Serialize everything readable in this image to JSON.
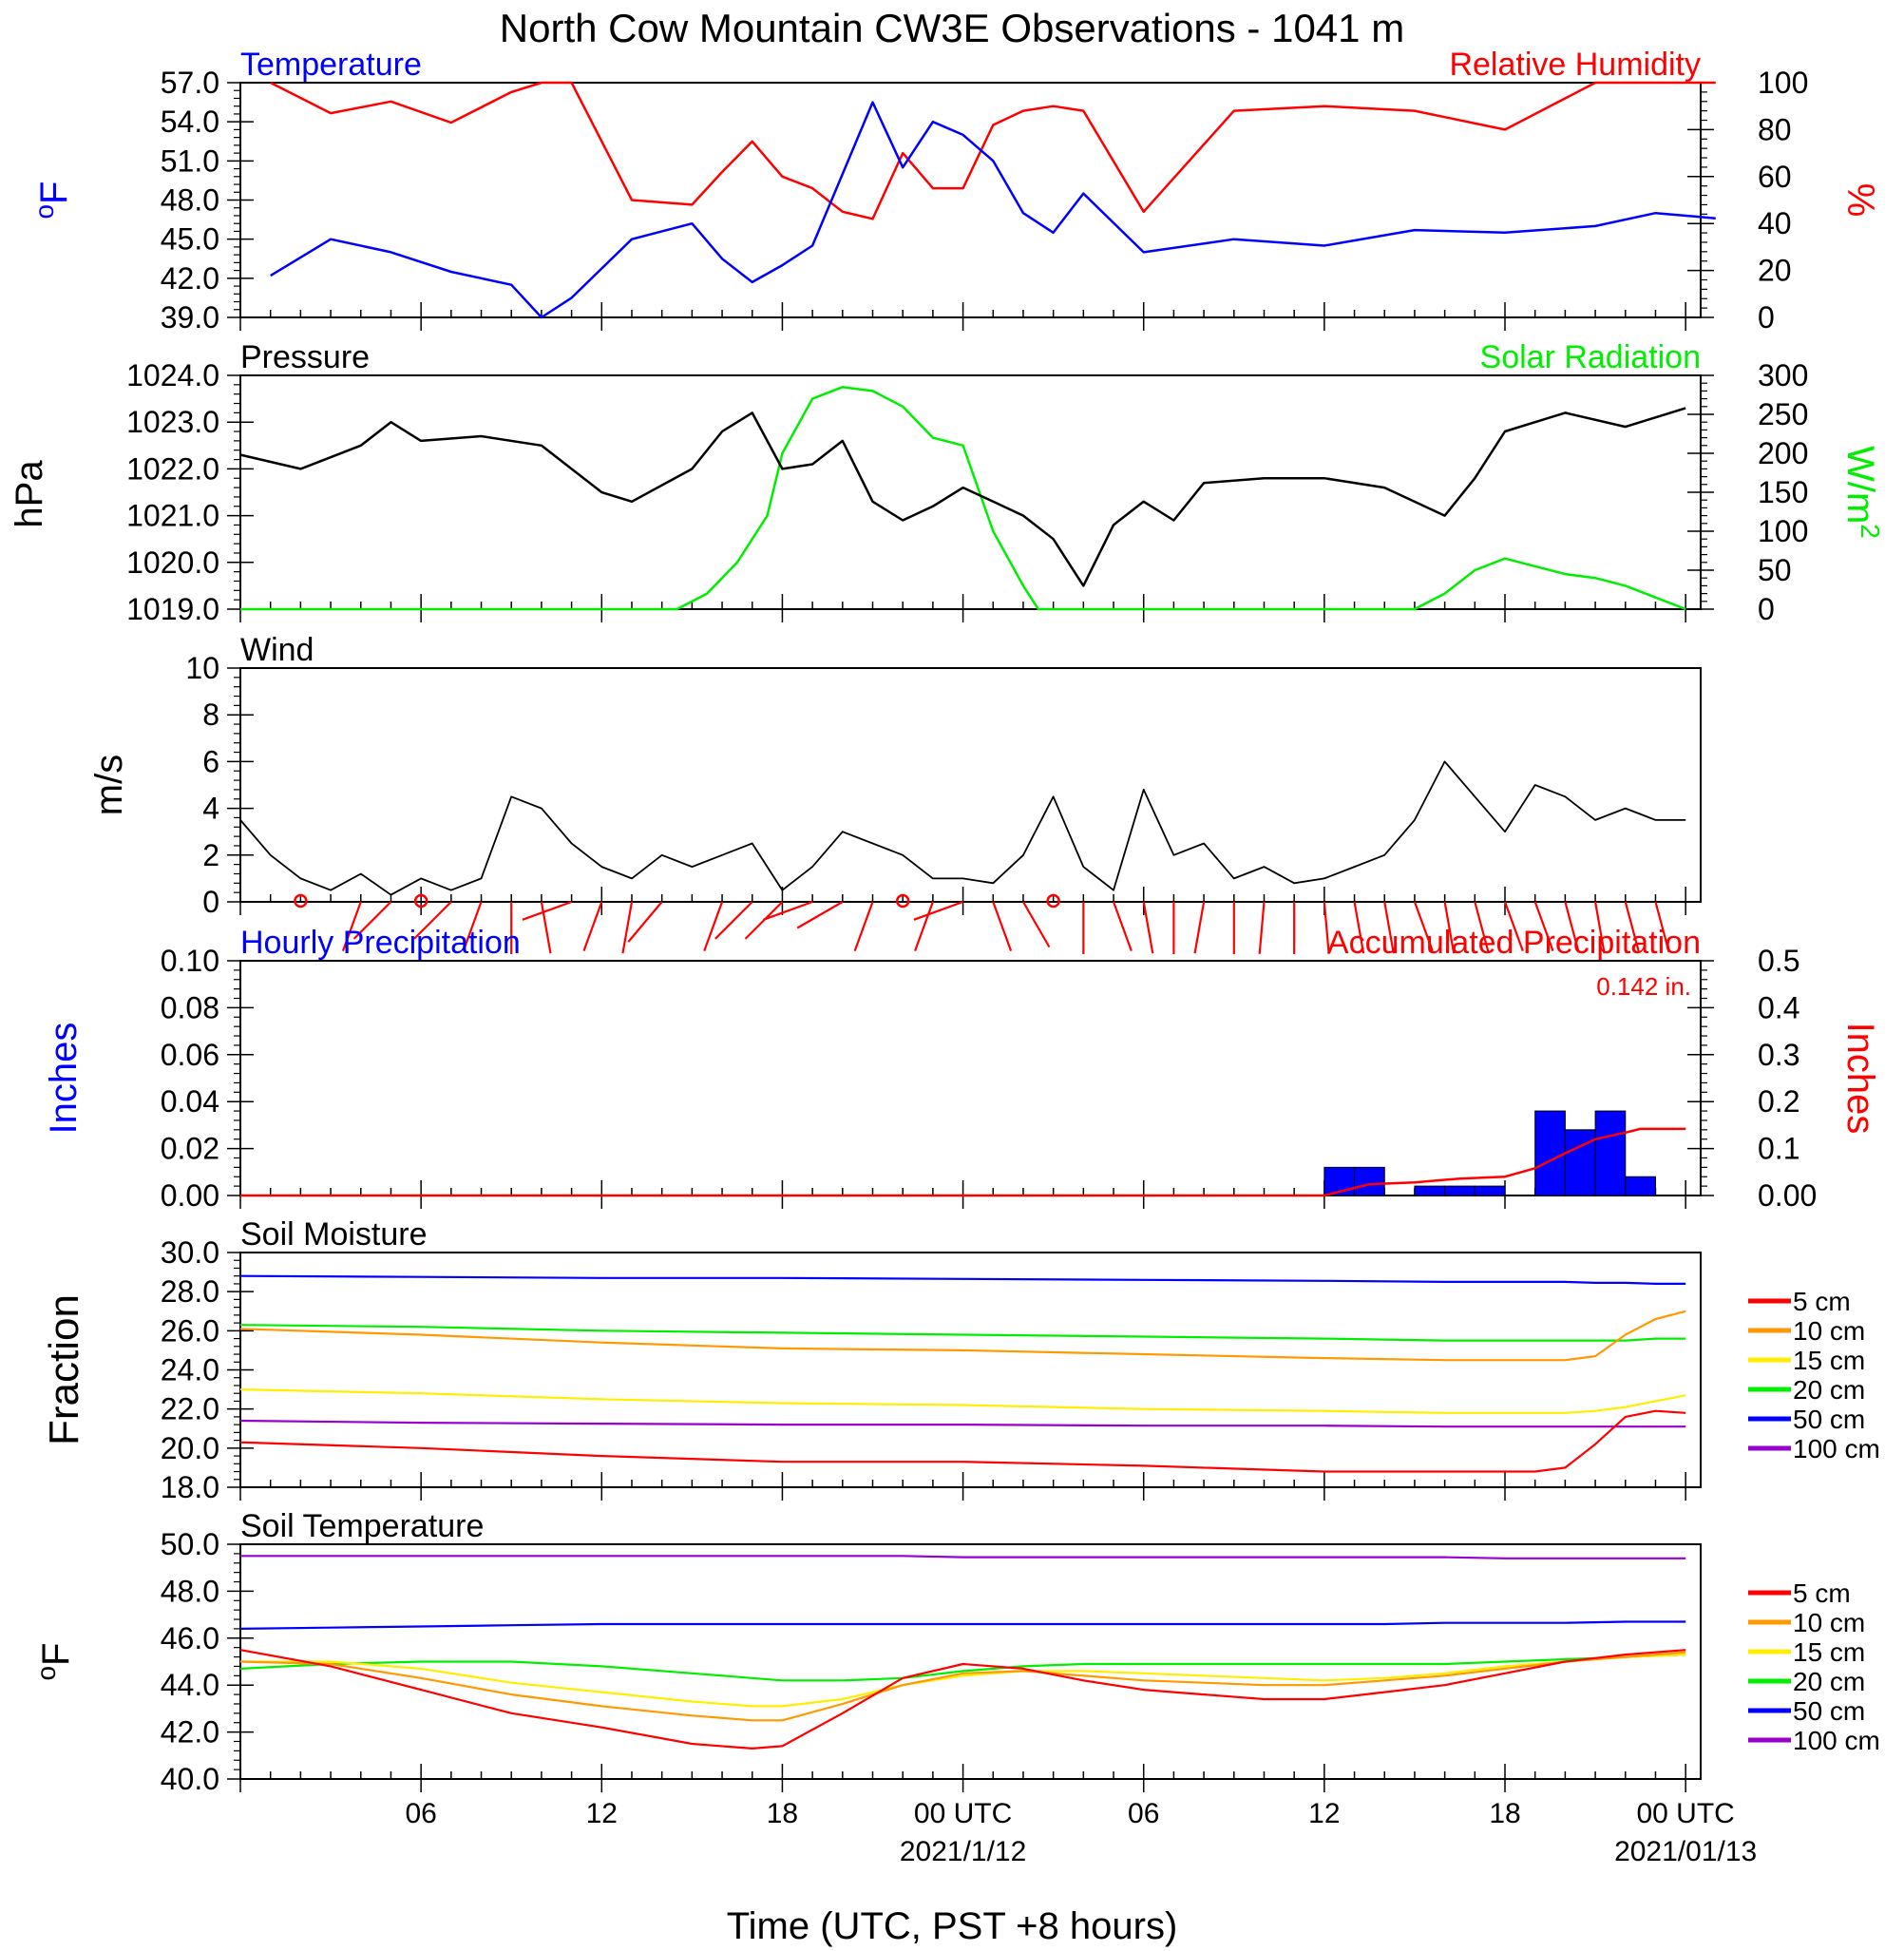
{
  "title": "North Cow Mountain CW3E Observations - 1041 m",
  "xlabel": "Time (UTC, PST +8 hours)",
  "xticks": [
    "06",
    "12",
    "18",
    "00 UTC",
    "06",
    "12",
    "18",
    "00 UTC"
  ],
  "date_labels": [
    "2021/1/12",
    "2021/01/13"
  ],
  "colors": {
    "temperature": "#0000ff",
    "humidity": "#ff0000",
    "pressure": "#000000",
    "solar": "#00ee00",
    "wind": "#000000",
    "barb": "#ff0000",
    "hourly": "#0000ff",
    "accum": "#ff0000",
    "d5": "#ff0000",
    "d10": "#ff9900",
    "d15": "#ffee00",
    "d20": "#00ee00",
    "d50": "#0000ff",
    "d100": "#9900cc"
  },
  "chart_data": [
    {
      "type": "line",
      "title_left": "Temperature",
      "title_right": "Relative Humidity",
      "ylabel_left": "oF",
      "ylabel_right": "%",
      "ylim_left": [
        39,
        57
      ],
      "yticks_left": [
        "57.0",
        "54.0",
        "51.0",
        "48.0",
        "45.0",
        "42.0",
        "39.0"
      ],
      "ylim_right": [
        0,
        100
      ],
      "yticks_right": [
        "100",
        "80",
        "60",
        "40",
        "20",
        "0"
      ],
      "x_hours": [
        1,
        3,
        5,
        7,
        9,
        10,
        11,
        13,
        15,
        16,
        17,
        18,
        19,
        20,
        21,
        22,
        23,
        24,
        25,
        26,
        27,
        28,
        30,
        33,
        36,
        39,
        42,
        45,
        47,
        49
      ],
      "series": [
        {
          "name": "Temperature",
          "axis": "left",
          "values": [
            42.2,
            45.0,
            44.0,
            42.5,
            41.5,
            39.0,
            40.5,
            45.0,
            46.2,
            43.5,
            41.7,
            43.0,
            44.5,
            50.0,
            55.5,
            50.5,
            54.0,
            53.0,
            51.0,
            47.0,
            45.5,
            48.5,
            44.0,
            45.0,
            44.5,
            45.7,
            45.5,
            46.0,
            47.0,
            46.6
          ]
        },
        {
          "name": "Relative Humidity",
          "axis": "right",
          "values": [
            100,
            87,
            92,
            83,
            96,
            100,
            100,
            50,
            48,
            62,
            75,
            60,
            55,
            45,
            42,
            70,
            55,
            55,
            82,
            88,
            90,
            88,
            45,
            88,
            90,
            88,
            80,
            100,
            100,
            100
          ]
        }
      ]
    },
    {
      "type": "line",
      "title_left": "Pressure",
      "title_right": "Solar Radiation",
      "ylabel_left": "hPa",
      "ylabel_right": "W/m2",
      "ylim_left": [
        1019,
        1024
      ],
      "yticks_left": [
        "1024.0",
        "1023.0",
        "1022.0",
        "1021.0",
        "1020.0",
        "1019.0"
      ],
      "ylim_right": [
        0,
        300
      ],
      "yticks_right": [
        "300",
        "250",
        "200",
        "150",
        "100",
        "50",
        "0"
      ],
      "pressure_x": [
        0,
        2,
        4,
        5,
        6,
        8,
        10,
        11,
        12,
        13,
        15,
        16,
        17,
        18,
        19,
        20,
        21,
        22,
        23,
        24,
        25,
        26,
        27,
        28,
        29,
        30,
        31,
        32,
        34,
        36,
        38,
        40,
        41,
        42,
        43,
        44,
        46,
        48
      ],
      "pressure": [
        1022.3,
        1022.0,
        1022.5,
        1023.0,
        1022.6,
        1022.7,
        1022.5,
        1022.0,
        1021.5,
        1021.3,
        1022.0,
        1022.8,
        1023.2,
        1022.0,
        1022.1,
        1022.6,
        1021.3,
        1020.9,
        1021.2,
        1021.6,
        1021.3,
        1021.0,
        1020.5,
        1019.5,
        1020.8,
        1021.3,
        1020.9,
        1021.7,
        1021.8,
        1021.8,
        1021.6,
        1021.0,
        1021.8,
        1022.8,
        1023.0,
        1023.2,
        1022.9,
        1023.3
      ],
      "solar_x": [
        0,
        14.5,
        15.5,
        16.5,
        17.5,
        18,
        19,
        20,
        21,
        22,
        23,
        24,
        25,
        26,
        26.5,
        39,
        40,
        41,
        42,
        43,
        44,
        45,
        46,
        47,
        48
      ],
      "solar": [
        0,
        0,
        20,
        60,
        120,
        200,
        270,
        285,
        280,
        260,
        220,
        210,
        100,
        30,
        0,
        0,
        20,
        50,
        65,
        55,
        45,
        40,
        30,
        15,
        0
      ]
    },
    {
      "type": "line",
      "title_left": "Wind",
      "ylabel_left": "m/s",
      "ylim_left": [
        0,
        10
      ],
      "yticks_left": [
        "10",
        "8",
        "6",
        "4",
        "2",
        "0"
      ],
      "x_hours": [
        0,
        1,
        2,
        3,
        4,
        5,
        6,
        7,
        8,
        9,
        10,
        11,
        12,
        13,
        14,
        15,
        16,
        17,
        18,
        19,
        20,
        21,
        22,
        23,
        24,
        25,
        26,
        27,
        28,
        29,
        30,
        31,
        32,
        33,
        34,
        35,
        36,
        37,
        38,
        39,
        40,
        41,
        42,
        43,
        44,
        45,
        46,
        47,
        48
      ],
      "speed": [
        3.5,
        2.0,
        1.0,
        0.5,
        1.2,
        0.3,
        1.0,
        0.5,
        1.0,
        4.5,
        4.0,
        2.5,
        1.5,
        1.0,
        2.0,
        1.5,
        2.0,
        2.5,
        0.5,
        1.5,
        3.0,
        2.5,
        2.0,
        1.0,
        1.0,
        0.8,
        2.0,
        4.5,
        1.5,
        0.5,
        4.8,
        2.0,
        2.5,
        1.0,
        1.5,
        0.8,
        1.0,
        1.5,
        2.0,
        3.5,
        6.0,
        4.5,
        3.0,
        5.0,
        4.5,
        3.5,
        4.0,
        3.5,
        3.5
      ],
      "barbs": [
        {
          "hour": 2,
          "speed": 0,
          "dir": 0
        },
        {
          "hour": 4,
          "speed": 1.5,
          "dir": 200
        },
        {
          "hour": 5,
          "speed": 1.5,
          "dir": 225
        },
        {
          "hour": 6,
          "speed": 0,
          "dir": 0
        },
        {
          "hour": 7,
          "speed": 1,
          "dir": 225
        },
        {
          "hour": 8,
          "speed": 1,
          "dir": 200
        },
        {
          "hour": 9,
          "speed": 4.5,
          "dir": 180
        },
        {
          "hour": 10,
          "speed": 3,
          "dir": 170
        },
        {
          "hour": 11,
          "speed": 2,
          "dir": 250
        },
        {
          "hour": 12,
          "speed": 2,
          "dir": 200
        },
        {
          "hour": 13,
          "speed": 2,
          "dir": 190
        },
        {
          "hour": 14,
          "speed": 2,
          "dir": 220
        },
        {
          "hour": 16,
          "speed": 2.5,
          "dir": 200
        },
        {
          "hour": 17,
          "speed": 3,
          "dir": 225
        },
        {
          "hour": 18,
          "speed": 2,
          "dir": 225
        },
        {
          "hour": 19,
          "speed": 2,
          "dir": 250
        },
        {
          "hour": 20,
          "speed": 2,
          "dir": 240
        },
        {
          "hour": 21,
          "speed": 2,
          "dir": 200
        },
        {
          "hour": 22,
          "speed": 0,
          "dir": 0
        },
        {
          "hour": 23,
          "speed": 1,
          "dir": 200
        },
        {
          "hour": 24,
          "speed": 1,
          "dir": 250
        },
        {
          "hour": 25,
          "speed": 2,
          "dir": 160
        },
        {
          "hour": 26,
          "speed": 2,
          "dir": 150
        },
        {
          "hour": 27,
          "speed": 0,
          "dir": 0
        },
        {
          "hour": 28,
          "speed": 1.5,
          "dir": 180
        },
        {
          "hour": 29,
          "speed": 2,
          "dir": 160
        },
        {
          "hour": 30,
          "speed": 1.5,
          "dir": 170
        },
        {
          "hour": 31,
          "speed": 1.5,
          "dir": 180
        },
        {
          "hour": 32,
          "speed": 1.5,
          "dir": 190
        },
        {
          "hour": 33,
          "speed": 1.5,
          "dir": 180
        },
        {
          "hour": 34,
          "speed": 1.5,
          "dir": 185
        },
        {
          "hour": 35,
          "speed": 1.5,
          "dir": 180
        },
        {
          "hour": 36,
          "speed": 4,
          "dir": 175
        },
        {
          "hour": 37,
          "speed": 3.5,
          "dir": 170
        },
        {
          "hour": 38,
          "speed": 3,
          "dir": 170
        },
        {
          "hour": 39,
          "speed": 4,
          "dir": 160
        },
        {
          "hour": 40,
          "speed": 3.5,
          "dir": 170
        },
        {
          "hour": 41,
          "speed": 3.5,
          "dir": 165
        },
        {
          "hour": 42,
          "speed": 4,
          "dir": 160
        },
        {
          "hour": 43,
          "speed": 4,
          "dir": 160
        },
        {
          "hour": 44,
          "speed": 3.5,
          "dir": 165
        },
        {
          "hour": 45,
          "speed": 3.5,
          "dir": 170
        },
        {
          "hour": 46,
          "speed": 3.5,
          "dir": 165
        },
        {
          "hour": 47,
          "speed": 3.5,
          "dir": 165
        }
      ]
    },
    {
      "type": "bar",
      "title_left": "Hourly Precipitation",
      "title_right": "Accumulated Precipitation",
      "annotation": "0.142 in.",
      "ylabel_left": "Inches",
      "ylabel_right": "Inches",
      "ylim_left": [
        0,
        0.1
      ],
      "yticks_left": [
        "0.10",
        "0.08",
        "0.06",
        "0.04",
        "0.02",
        "0.00"
      ],
      "ylim_right": [
        0,
        0.5
      ],
      "yticks_right": [
        "0.5",
        "0.4",
        "0.3",
        "0.2",
        "0.1",
        "0.00"
      ],
      "bars": [
        {
          "start_hour": 36,
          "value": 0.012
        },
        {
          "start_hour": 37,
          "value": 0.012
        },
        {
          "start_hour": 39,
          "value": 0.004
        },
        {
          "start_hour": 40,
          "value": 0.004
        },
        {
          "start_hour": 41,
          "value": 0.004
        },
        {
          "start_hour": 43,
          "value": 0.036
        },
        {
          "start_hour": 44,
          "value": 0.028
        },
        {
          "start_hour": 45,
          "value": 0.036
        },
        {
          "start_hour": 46,
          "value": 0.008
        }
      ],
      "accum_x": [
        0,
        36,
        37.5,
        39,
        40.5,
        42,
        43,
        44,
        45,
        46,
        46.5,
        48
      ],
      "accum": [
        0,
        0,
        0.024,
        0.028,
        0.036,
        0.04,
        0.058,
        0.09,
        0.12,
        0.134,
        0.142,
        0.142
      ]
    },
    {
      "type": "line",
      "title_left": "Soil Moisture",
      "ylabel_left": "Fraction",
      "ylim_left": [
        18,
        30
      ],
      "yticks_left": [
        "30.0",
        "28.0",
        "26.0",
        "24.0",
        "22.0",
        "20.0",
        "18.0"
      ],
      "legend": [
        "5 cm",
        "10 cm",
        "15 cm",
        "20 cm",
        "50 cm",
        "100 cm"
      ],
      "x_hours": [
        0,
        6,
        12,
        18,
        24,
        30,
        36,
        40,
        43,
        44,
        45,
        46,
        47,
        48
      ],
      "series": [
        {
          "name": "5 cm",
          "values": [
            20.3,
            20.0,
            19.6,
            19.3,
            19.3,
            19.1,
            18.8,
            18.8,
            18.8,
            19.0,
            20.2,
            21.6,
            21.9,
            21.8
          ]
        },
        {
          "name": "10 cm",
          "values": [
            26.1,
            25.8,
            25.4,
            25.1,
            25.0,
            24.8,
            24.6,
            24.5,
            24.5,
            24.5,
            24.7,
            25.8,
            26.6,
            27.0
          ]
        },
        {
          "name": "15 cm",
          "values": [
            23.0,
            22.8,
            22.5,
            22.3,
            22.2,
            22.0,
            21.9,
            21.8,
            21.8,
            21.8,
            21.9,
            22.1,
            22.4,
            22.7
          ]
        },
        {
          "name": "20 cm",
          "values": [
            26.3,
            26.2,
            26.0,
            25.9,
            25.8,
            25.7,
            25.6,
            25.5,
            25.5,
            25.5,
            25.5,
            25.5,
            25.6,
            25.6
          ]
        },
        {
          "name": "50 cm",
          "values": [
            28.8,
            28.75,
            28.7,
            28.7,
            28.65,
            28.6,
            28.55,
            28.5,
            28.5,
            28.5,
            28.45,
            28.45,
            28.4,
            28.4
          ]
        },
        {
          "name": "100 cm",
          "values": [
            21.4,
            21.3,
            21.25,
            21.2,
            21.2,
            21.15,
            21.15,
            21.1,
            21.1,
            21.1,
            21.1,
            21.1,
            21.1,
            21.1
          ]
        }
      ]
    },
    {
      "type": "line",
      "title_left": "Soil Temperature",
      "ylabel_left": "oF",
      "ylim_left": [
        40,
        50
      ],
      "yticks_left": [
        "50.0",
        "48.0",
        "46.0",
        "44.0",
        "42.0",
        "40.0"
      ],
      "legend": [
        "5 cm",
        "10 cm",
        "15 cm",
        "20 cm",
        "50 cm",
        "100 cm"
      ],
      "x_hours": [
        0,
        3,
        6,
        9,
        12,
        15,
        17,
        18,
        20,
        22,
        24,
        26,
        28,
        30,
        32,
        34,
        36,
        38,
        40,
        42,
        44,
        46,
        48
      ],
      "series": [
        {
          "name": "5 cm",
          "values": [
            45.5,
            44.8,
            43.8,
            42.8,
            42.2,
            41.5,
            41.3,
            41.4,
            42.8,
            44.3,
            44.9,
            44.7,
            44.2,
            43.8,
            43.6,
            43.4,
            43.4,
            43.7,
            44.0,
            44.5,
            45.0,
            45.3,
            45.5
          ]
        },
        {
          "name": "10 cm",
          "values": [
            45.0,
            44.9,
            44.3,
            43.6,
            43.1,
            42.7,
            42.5,
            42.5,
            43.2,
            44.0,
            44.5,
            44.6,
            44.4,
            44.2,
            44.1,
            44.0,
            44.0,
            44.2,
            44.4,
            44.7,
            45.0,
            45.2,
            45.4
          ]
        },
        {
          "name": "15 cm",
          "values": [
            45.0,
            45.0,
            44.7,
            44.1,
            43.7,
            43.3,
            43.1,
            43.1,
            43.4,
            44.0,
            44.4,
            44.6,
            44.6,
            44.5,
            44.4,
            44.3,
            44.2,
            44.3,
            44.5,
            44.8,
            45.0,
            45.2,
            45.3
          ]
        },
        {
          "name": "20 cm",
          "values": [
            44.7,
            44.9,
            45.0,
            45.0,
            44.8,
            44.5,
            44.3,
            44.2,
            44.2,
            44.3,
            44.6,
            44.8,
            44.9,
            44.9,
            44.9,
            44.9,
            44.9,
            44.9,
            44.9,
            45.0,
            45.1,
            45.2,
            45.3
          ]
        },
        {
          "name": "50 cm",
          "values": [
            46.4,
            46.45,
            46.5,
            46.55,
            46.6,
            46.6,
            46.6,
            46.6,
            46.6,
            46.6,
            46.6,
            46.6,
            46.6,
            46.6,
            46.6,
            46.6,
            46.6,
            46.6,
            46.65,
            46.65,
            46.65,
            46.7,
            46.7
          ]
        },
        {
          "name": "100 cm",
          "values": [
            49.5,
            49.5,
            49.5,
            49.5,
            49.5,
            49.5,
            49.5,
            49.5,
            49.5,
            49.5,
            49.45,
            49.45,
            49.45,
            49.45,
            49.45,
            49.45,
            49.45,
            49.45,
            49.45,
            49.4,
            49.4,
            49.4,
            49.4
          ]
        }
      ]
    }
  ]
}
